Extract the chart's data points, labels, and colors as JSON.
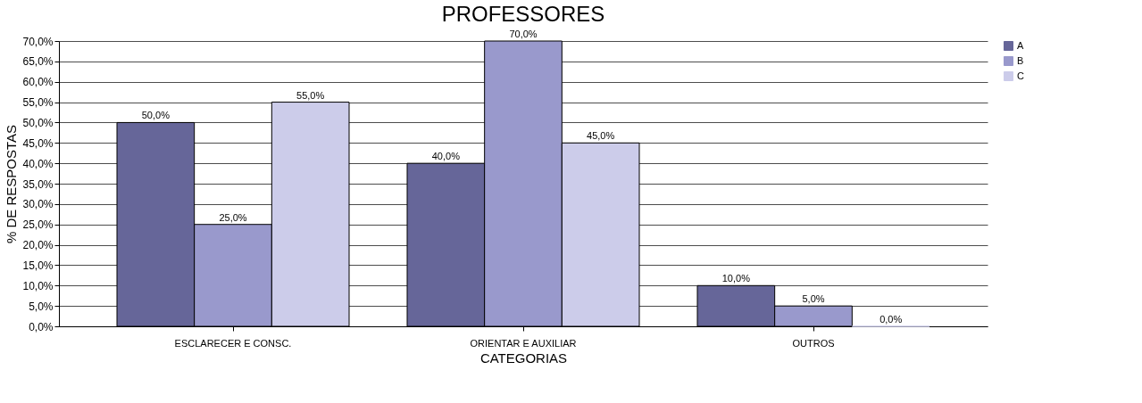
{
  "chart_data": {
    "type": "bar",
    "title": "PROFESSORES",
    "xlabel": "CATEGORIAS",
    "ylabel": "% DE RESPOSTAS",
    "categories": [
      "ESCLARECER E CONSC.",
      "ORIENTAR E AUXILIAR",
      "OUTROS"
    ],
    "series": [
      {
        "name": "A",
        "color": "#666699",
        "values": [
          50,
          40,
          10
        ],
        "value_labels": [
          "50,0%",
          "40,0%",
          "10,0%"
        ]
      },
      {
        "name": "B",
        "color": "#9999cc",
        "values": [
          25,
          70,
          5
        ],
        "value_labels": [
          "25,0%",
          "70,0%",
          "5,0%"
        ]
      },
      {
        "name": "C",
        "color": "#ccccea",
        "values": [
          55,
          45,
          0
        ],
        "value_labels": [
          "55,0%",
          "45,0%",
          "0,0%"
        ]
      }
    ],
    "ylim": [
      0,
      70
    ],
    "yticks": [
      {
        "value": 0,
        "label": "0,0%"
      },
      {
        "value": 5,
        "label": "5,0%"
      },
      {
        "value": 10,
        "label": "10,0%"
      },
      {
        "value": 15,
        "label": "15,0%"
      },
      {
        "value": 20,
        "label": "20,0%"
      },
      {
        "value": 25,
        "label": "25,0%"
      },
      {
        "value": 30,
        "label": "30,0%"
      },
      {
        "value": 35,
        "label": "35,0%"
      },
      {
        "value": 40,
        "label": "40,0%"
      },
      {
        "value": 45,
        "label": "45,0%"
      },
      {
        "value": 50,
        "label": "50,0%"
      },
      {
        "value": 55,
        "label": "55,0%"
      },
      {
        "value": 60,
        "label": "60,0%"
      },
      {
        "value": 65,
        "label": "65,0%"
      },
      {
        "value": 70,
        "label": "70,0%"
      }
    ],
    "grid": "y",
    "legend": "right"
  }
}
